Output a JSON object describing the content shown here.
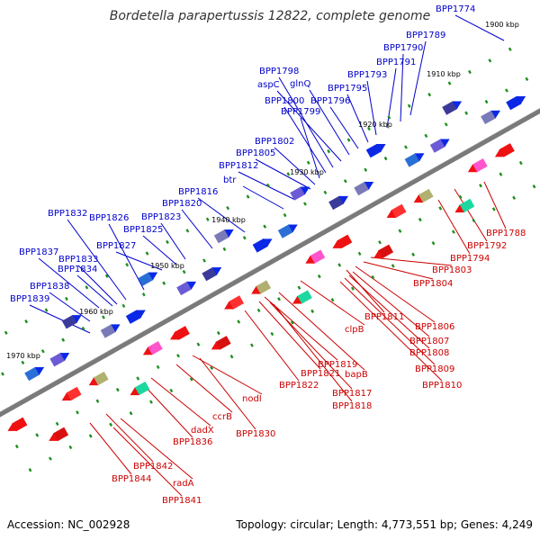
{
  "title": "Bordetella parapertussis 12822, complete genome",
  "footer": {
    "accession": "Accession: NC_002928",
    "summary": "Topology: circular; Length: 4,773,551 bp; Genes: 4,249"
  },
  "colors": {
    "forward_labels": "#0000cc",
    "reverse_labels": "#cc0000",
    "backbone": "#7a7a7a",
    "tick_marks": "#1f8f1f"
  },
  "ticks": [
    "1900 kbp",
    "1910 kbp",
    "1920 kbp",
    "1930 kbp",
    "1940 kbp",
    "1950 kbp",
    "1960 kbp",
    "1970 kbp"
  ],
  "forward_genes": [
    "BPP1774",
    "BPP1789",
    "BPP1790",
    "BPP1791",
    "BPP1793",
    "BPP1795",
    "BPP1796",
    "glnQ",
    "aspC",
    "BPP1798",
    "BPP1800",
    "BPP1799",
    "BPP1802",
    "BPP1805",
    "BPP1812",
    "btr",
    "BPP1816",
    "BPP1820",
    "BPP1823",
    "BPP1825",
    "BPP1826",
    "BPP1827",
    "BPP1832",
    "BPP1837",
    "BPP1833",
    "BPP1834",
    "BPP1838",
    "BPP1839"
  ],
  "reverse_genes": [
    "BPP1788",
    "BPP1792",
    "BPP1794",
    "BPP1803",
    "BPP1804",
    "BPP1811",
    "BPP1806",
    "BPP1807",
    "BPP1808",
    "BPP1809",
    "BPP1810",
    "clpB",
    "bapB",
    "BPP1819",
    "BPP1821",
    "BPP1822",
    "BPP1817",
    "BPP1818",
    "nodI",
    "ccrB",
    "BPP1830",
    "dadX",
    "BPP1836",
    "BPP1842",
    "radA",
    "BPP1844",
    "BPP1841"
  ]
}
